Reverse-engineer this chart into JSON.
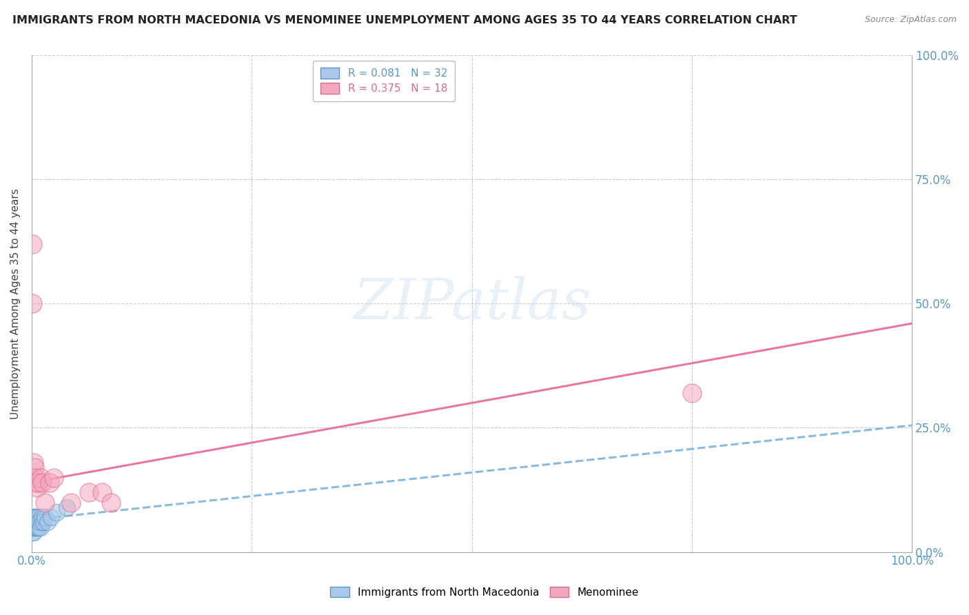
{
  "title": "IMMIGRANTS FROM NORTH MACEDONIA VS MENOMINEE UNEMPLOYMENT AMONG AGES 35 TO 44 YEARS CORRELATION CHART",
  "source": "Source: ZipAtlas.com",
  "blue_label": "Immigrants from North Macedonia",
  "pink_label": "Menominee",
  "ylabel": "Unemployment Among Ages 35 to 44 years",
  "blue_R": 0.081,
  "blue_N": 32,
  "pink_R": 0.375,
  "pink_N": 18,
  "blue_color": "#aac8e8",
  "pink_color": "#f4a8bc",
  "blue_edge": "#5599cc",
  "pink_edge": "#e06888",
  "line_blue_color": "#88bbdd",
  "line_pink_color": "#e87898",
  "watermark": "ZIPatlas",
  "blue_line_intercept": 0.065,
  "blue_line_slope": 0.19,
  "pink_line_intercept": 0.14,
  "pink_line_slope": 0.32,
  "xmin": 0.0,
  "xmax": 1.0,
  "ymin": 0.0,
  "ymax": 1.0,
  "grid_color": "#cccccc",
  "bg_color": "#ffffff",
  "label_color": "#5599cc",
  "title_color": "#222222",
  "title_fontsize": 11.5,
  "source_fontsize": 9,
  "tick_fontsize": 12,
  "ylabel_fontsize": 11,
  "blue_x": [
    0.001,
    0.001,
    0.001,
    0.002,
    0.002,
    0.002,
    0.002,
    0.003,
    0.003,
    0.003,
    0.004,
    0.004,
    0.004,
    0.005,
    0.005,
    0.005,
    0.006,
    0.006,
    0.007,
    0.007,
    0.008,
    0.008,
    0.009,
    0.01,
    0.011,
    0.012,
    0.013,
    0.015,
    0.018,
    0.022,
    0.028,
    0.04
  ],
  "blue_y": [
    0.04,
    0.05,
    0.06,
    0.04,
    0.05,
    0.06,
    0.07,
    0.05,
    0.06,
    0.07,
    0.05,
    0.06,
    0.07,
    0.05,
    0.06,
    0.07,
    0.05,
    0.06,
    0.05,
    0.06,
    0.05,
    0.07,
    0.06,
    0.05,
    0.06,
    0.07,
    0.06,
    0.07,
    0.06,
    0.07,
    0.08,
    0.09
  ],
  "pink_x": [
    0.001,
    0.001,
    0.002,
    0.003,
    0.004,
    0.005,
    0.006,
    0.007,
    0.01,
    0.012,
    0.015,
    0.02,
    0.025,
    0.045,
    0.065,
    0.75,
    0.08,
    0.09
  ],
  "pink_y": [
    0.62,
    0.5,
    0.18,
    0.17,
    0.15,
    0.14,
    0.13,
    0.14,
    0.15,
    0.14,
    0.1,
    0.14,
    0.15,
    0.1,
    0.12,
    0.32,
    0.12,
    0.1
  ]
}
